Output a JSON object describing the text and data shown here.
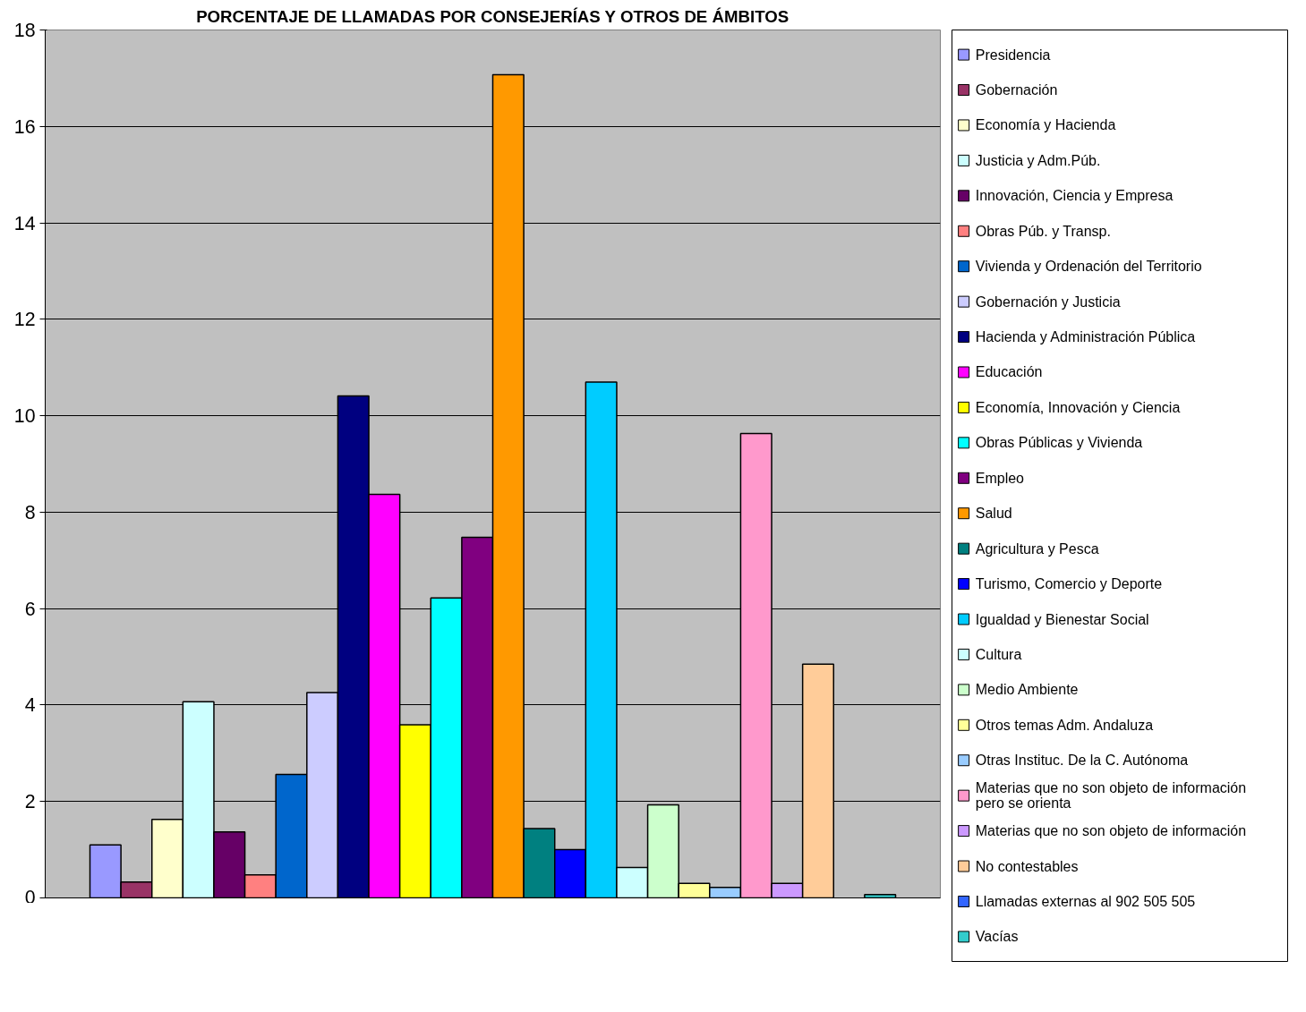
{
  "chart_data": {
    "type": "bar",
    "title": "PORCENTAJE DE LLAMADAS POR CONSEJERÍAS Y OTROS DE ÁMBITOS",
    "categories": [
      null
    ],
    "ylim": [
      0,
      18
    ],
    "yticks": [
      0,
      2,
      4,
      6,
      8,
      10,
      12,
      14,
      16,
      18
    ],
    "grid": "y",
    "legend": "right",
    "tick_labels": "y",
    "series": [
      {
        "name": "Presidencia",
        "color": "#9999ff",
        "values": [
          1.1
        ]
      },
      {
        "name": "Gobernación",
        "color": "#993366",
        "values": [
          0.33
        ]
      },
      {
        "name": "Economía y Hacienda",
        "color": "#ffffcc",
        "values": [
          1.63
        ]
      },
      {
        "name": "Justicia y Adm.Púb.",
        "color": "#ccffff",
        "values": [
          4.07
        ]
      },
      {
        "name": "Innovación, Ciencia y Empresa",
        "color": "#660066",
        "values": [
          1.37
        ]
      },
      {
        "name": "Obras Púb. y Transp.",
        "color": "#ff8080",
        "values": [
          0.48
        ]
      },
      {
        "name": "Vivienda y Ordenación del Territorio",
        "color": "#0066cc",
        "values": [
          2.56
        ]
      },
      {
        "name": "Gobernación y Justicia",
        "color": "#ccccff",
        "values": [
          4.26
        ]
      },
      {
        "name": "Hacienda y Administración Pública",
        "color": "#000080",
        "values": [
          10.41
        ]
      },
      {
        "name": "Educación",
        "color": "#ff00ff",
        "values": [
          8.37
        ]
      },
      {
        "name": "Economía, Innovación y Ciencia",
        "color": "#ffff00",
        "values": [
          3.59
        ]
      },
      {
        "name": "Obras Públicas y Vivienda",
        "color": "#00ffff",
        "values": [
          6.22
        ]
      },
      {
        "name": "Empleo",
        "color": "#800080",
        "values": [
          7.48
        ]
      },
      {
        "name": "Salud",
        "color": "#ff9900",
        "values": [
          17.07
        ]
      },
      {
        "name": "Agricultura y Pesca",
        "color": "#008080",
        "values": [
          1.44
        ]
      },
      {
        "name": "Turismo, Comercio y Deporte",
        "color": "#0000ff",
        "values": [
          1.0
        ]
      },
      {
        "name": "Igualdad y Bienestar Social",
        "color": "#00ccff",
        "values": [
          10.7
        ]
      },
      {
        "name": "Cultura",
        "color": "#ccffff",
        "values": [
          0.63
        ]
      },
      {
        "name": "Medio Ambiente",
        "color": "#ccffcc",
        "values": [
          1.93
        ]
      },
      {
        "name": "Otros temas Adm. Andaluza",
        "color": "#ffff99",
        "values": [
          0.3
        ]
      },
      {
        "name": "Otras Instituc. De la C. Autónoma",
        "color": "#99ccff",
        "values": [
          0.22
        ]
      },
      {
        "name": "Materias que no son objeto de información pero se orienta",
        "color": "#ff99cc",
        "values": [
          9.63
        ]
      },
      {
        "name": "Materias que no son objeto de información",
        "color": "#cc99ff",
        "values": [
          0.3
        ]
      },
      {
        "name": "No contestables",
        "color": "#ffcc99",
        "values": [
          4.85
        ]
      },
      {
        "name": "Llamadas externas al 902 505 505",
        "color": "#3366ff",
        "values": [
          null
        ]
      },
      {
        "name": "Vacías",
        "color": "#33cccc",
        "values": [
          0.07
        ]
      }
    ]
  }
}
